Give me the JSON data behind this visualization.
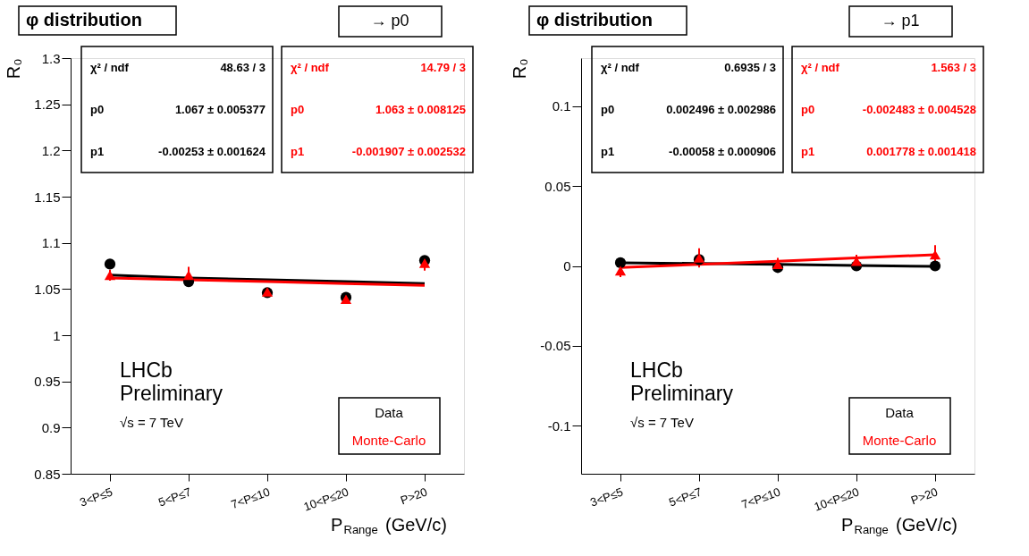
{
  "chart_data": [
    {
      "type": "scatter",
      "title": "φ distribution",
      "subtitle": "→ p0",
      "xlabel": "P$_{Range}$ (GeV/c)",
      "ylabel": "R₀",
      "categories": [
        "3<P≤5",
        "5<P≤7",
        "7<P≤10",
        "10<P≤20",
        "P>20"
      ],
      "ylim": [
        0.85,
        1.3
      ],
      "yticks": [
        0.85,
        0.9,
        0.95,
        1,
        1.05,
        1.1,
        1.15,
        1.2,
        1.25,
        1.3
      ],
      "series": [
        {
          "name": "Data",
          "color": "#000000",
          "marker": "circle",
          "values": [
            1.077,
            1.058,
            1.046,
            1.041,
            1.081
          ],
          "errors": [
            0.003,
            0.003,
            0.003,
            0.003,
            0.005
          ]
        },
        {
          "name": "Monte-Carlo",
          "color": "#ff0000",
          "marker": "triangle",
          "values": [
            1.065,
            1.065,
            1.047,
            1.039,
            1.078
          ],
          "errors": [
            0.006,
            0.009,
            0.004,
            0.005,
            0.008
          ]
        },
        {
          "type": "line",
          "color": "#000000",
          "values": [
            1.065,
            1.062,
            1.06,
            1.058,
            1.056
          ]
        },
        {
          "type": "line",
          "color": "#ff0000",
          "values": [
            1.062,
            1.06,
            1.058,
            1.056,
            1.054
          ]
        }
      ],
      "annotations": [
        "χ² / ndf",
        "48.63 / 3",
        "p0",
        "1.067 ± 0.005377",
        "p1",
        "-0.00253 ± 0.001624",
        "χ² / ndf",
        "14.79 / 3",
        "p0",
        "1.063 ± 0.008125",
        "p1",
        "-0.001907 ± 0.002532",
        "LHCb",
        "Preliminary",
        "√s = 7 TeV"
      ],
      "legend": "bottom right",
      "grid": false
    },
    {
      "type": "scatter",
      "title": "φ distribution",
      "subtitle": "→ p1",
      "xlabel": "P$_{Range}$ (GeV/c)",
      "ylabel": "R₀",
      "categories": [
        "3<P≤5",
        "5<P≤7",
        "7<P≤10",
        "10<P≤20",
        "P>20"
      ],
      "ylim": [
        -0.13,
        0.13
      ],
      "yticks": [
        -0.1,
        -0.05,
        0,
        0.05,
        0.1
      ],
      "series": [
        {
          "name": "Data",
          "color": "#000000",
          "marker": "circle",
          "values": [
            0.002,
            0.004,
            -0.001,
            0.0,
            0.0
          ],
          "errors": [
            0.002,
            0.002,
            0.002,
            0.002,
            0.002
          ]
        },
        {
          "name": "Monte-Carlo",
          "color": "#ff0000",
          "marker": "triangle",
          "values": [
            -0.003,
            0.005,
            0.001,
            0.003,
            0.007
          ],
          "errors": [
            0.004,
            0.006,
            0.004,
            0.004,
            0.006
          ]
        },
        {
          "type": "line",
          "color": "#000000",
          "values": [
            0.002,
            0.0015,
            0.001,
            0.0003,
            -0.0003
          ]
        },
        {
          "type": "line",
          "color": "#ff0000",
          "values": [
            -0.001,
            0.001,
            0.003,
            0.005,
            0.007
          ]
        }
      ],
      "annotations": [
        "χ² / ndf",
        "0.6935 / 3",
        "p0",
        "0.002496 ± 0.002986",
        "p1",
        "-0.00058 ± 0.000906",
        "χ² / ndf",
        "1.563 / 3",
        "p0",
        "-0.002483 ± 0.004528",
        "p1",
        "0.001778 ± 0.001418",
        "LHCb",
        "Preliminary",
        "√s = 7 TeV"
      ],
      "legend": "bottom right",
      "grid": false
    }
  ]
}
